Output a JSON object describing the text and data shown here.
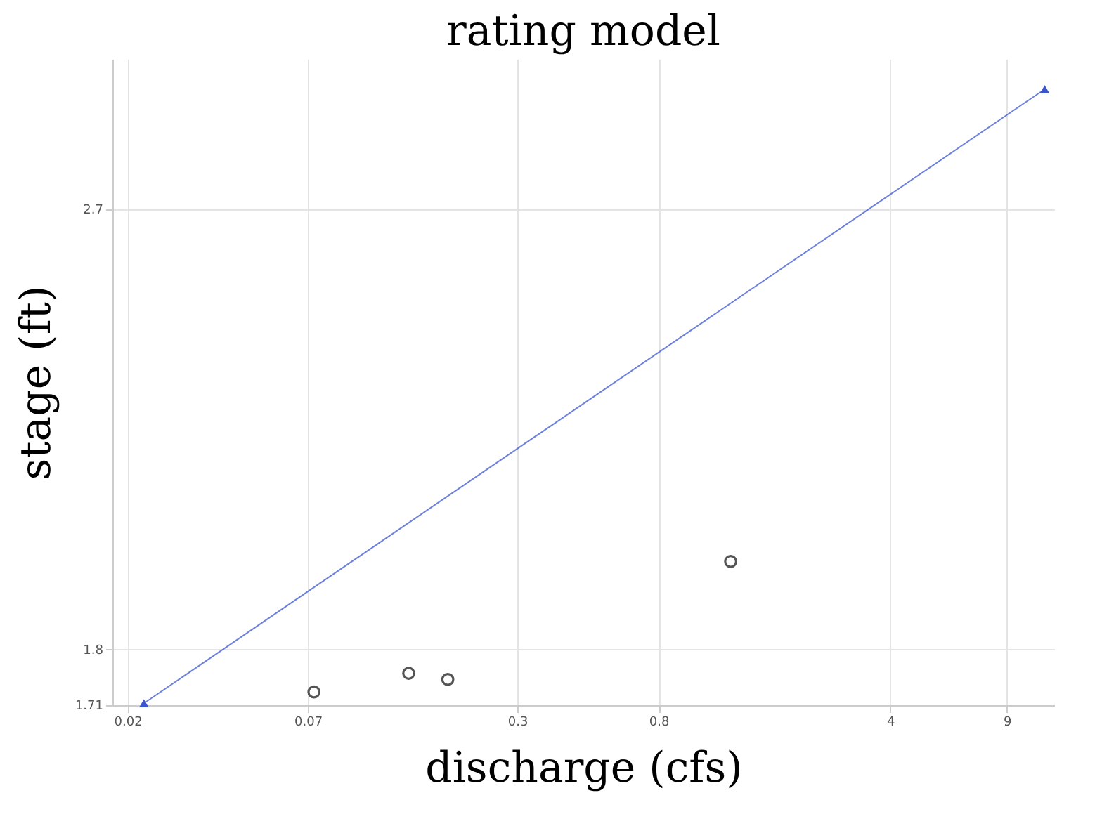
{
  "chart_data": {
    "type": "scatter",
    "title": "rating model",
    "xlabel": "discharge (cfs)",
    "ylabel": "stage (ft)",
    "log": "xy",
    "grid": true,
    "legend": false,
    "xlim": [
      0.018,
      12.5
    ],
    "xticks": [
      0.02,
      0.07,
      0.3,
      0.8,
      4,
      9
    ],
    "ylim": [
      1.709,
      3.1
    ],
    "yticks": [
      1.71,
      1.8,
      2.7
    ],
    "series": [
      {
        "type": "line",
        "marker": "triangle",
        "color": "#3b55d0",
        "x": [
          0.0224,
          11.7
        ],
        "values": [
          1.712,
          3.015
        ]
      },
      {
        "marker": "circle",
        "color": "#555555",
        "x": [
          0.073,
          0.141,
          0.185,
          1.32
        ],
        "values": [
          1.73,
          1.76,
          1.75,
          1.951
        ]
      }
    ]
  }
}
